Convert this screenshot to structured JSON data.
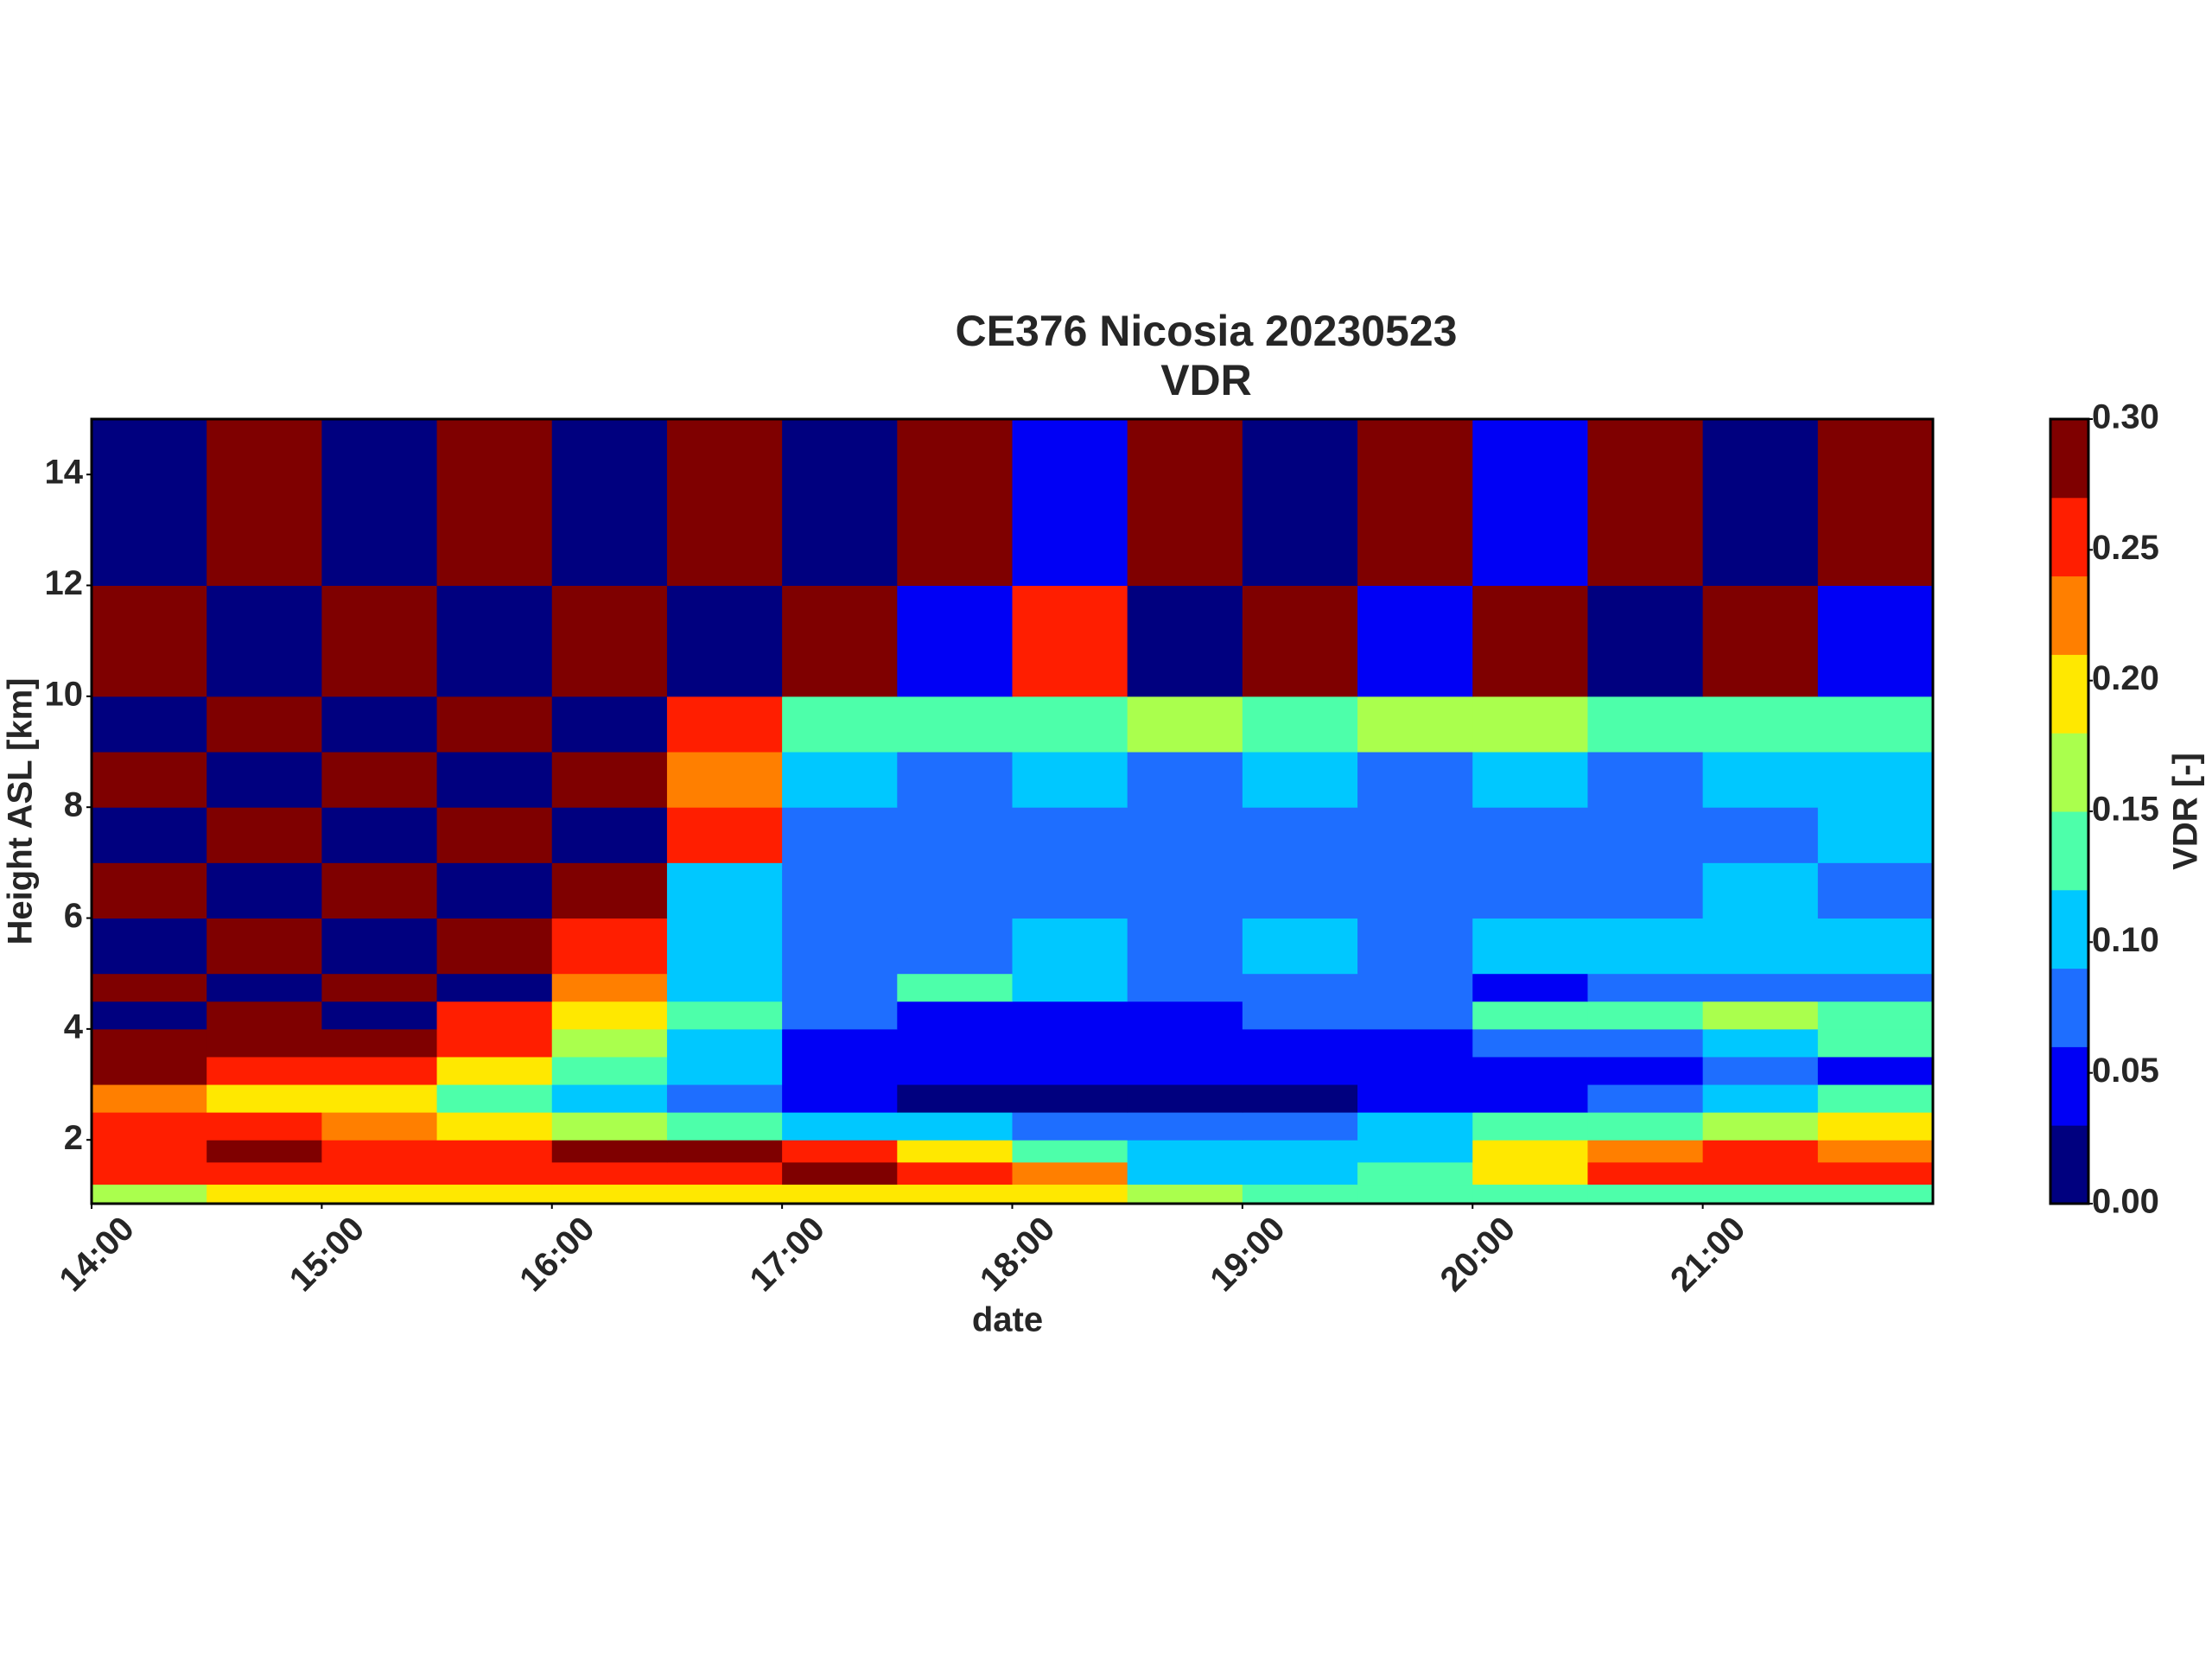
{
  "chart_data": {
    "type": "heatmap",
    "title": "CE376 Nicosia 20230523",
    "subtitle": "VDR",
    "x_label": "date",
    "y_label": "Height ASL [km]",
    "x_edges": [
      14,
      14.5,
      15,
      15.5,
      16,
      16.5,
      17,
      17.5,
      18,
      18.5,
      19,
      19.5,
      20,
      20.5,
      21,
      21.5,
      22
    ],
    "y_edges": [
      0.85,
      1.2,
      1.6,
      2.0,
      2.5,
      3.0,
      3.5,
      4.0,
      4.5,
      5.0,
      6.0,
      7.0,
      8.0,
      9.0,
      10.0,
      12.0,
      15.0
    ],
    "z": [
      [
        0.17,
        0.18,
        0.19,
        0.19,
        0.19,
        0.2,
        0.2,
        0.2,
        0.19,
        0.16,
        0.14,
        0.13,
        0.14,
        0.13,
        0.13,
        0.12
      ],
      [
        0.25,
        0.25,
        0.26,
        0.24,
        0.25,
        0.26,
        0.27,
        0.24,
        0.21,
        0.1,
        0.09,
        0.12,
        0.2,
        0.24,
        0.26,
        0.25
      ],
      [
        0.26,
        0.27,
        0.25,
        0.26,
        0.29,
        0.29,
        0.25,
        0.19,
        0.12,
        0.09,
        0.09,
        0.11,
        0.19,
        0.23,
        0.25,
        0.22
      ],
      [
        0.24,
        0.26,
        0.22,
        0.2,
        0.16,
        0.13,
        0.11,
        0.09,
        0.08,
        0.08,
        0.08,
        0.09,
        0.12,
        0.13,
        0.16,
        0.18
      ],
      [
        0.22,
        0.2,
        0.18,
        0.14,
        0.11,
        0.08,
        0.03,
        0.02,
        0.02,
        0.02,
        0.02,
        0.03,
        0.04,
        0.06,
        0.09,
        0.12
      ],
      [
        0.28,
        0.26,
        0.24,
        0.2,
        0.14,
        0.1,
        0.04,
        0.03,
        0.03,
        0.03,
        0.04,
        0.04,
        0.04,
        0.05,
        0.06,
        0.05
      ],
      [
        0.29,
        0.28,
        0.27,
        0.24,
        0.17,
        0.11,
        0.05,
        0.04,
        0.04,
        0.04,
        0.05,
        0.05,
        0.07,
        0.06,
        0.1,
        0.12
      ],
      [
        0.01,
        0.28,
        0.02,
        0.26,
        0.2,
        0.13,
        0.06,
        0.04,
        0.04,
        0.05,
        0.06,
        0.08,
        0.13,
        0.14,
        0.15,
        0.14
      ],
      [
        0.28,
        0.02,
        0.28,
        0.02,
        0.22,
        0.1,
        0.08,
        0.12,
        0.1,
        0.08,
        0.07,
        0.06,
        0.05,
        0.06,
        0.07,
        0.08
      ],
      [
        0.02,
        0.29,
        0.01,
        0.28,
        0.25,
        0.09,
        0.08,
        0.08,
        0.09,
        0.08,
        0.09,
        0.08,
        0.09,
        0.1,
        0.09,
        0.1
      ],
      [
        0.29,
        0.01,
        0.29,
        0.02,
        0.27,
        0.1,
        0.07,
        0.08,
        0.07,
        0.08,
        0.07,
        0.08,
        0.07,
        0.08,
        0.09,
        0.08
      ],
      [
        0.01,
        0.29,
        0.02,
        0.29,
        0.02,
        0.25,
        0.08,
        0.07,
        0.08,
        0.07,
        0.08,
        0.07,
        0.08,
        0.07,
        0.08,
        0.09
      ],
      [
        0.29,
        0.02,
        0.29,
        0.01,
        0.28,
        0.22,
        0.09,
        0.08,
        0.09,
        0.08,
        0.09,
        0.08,
        0.09,
        0.08,
        0.09,
        0.1
      ],
      [
        0.02,
        0.28,
        0.01,
        0.29,
        0.02,
        0.26,
        0.14,
        0.13,
        0.14,
        0.15,
        0.14,
        0.16,
        0.15,
        0.14,
        0.13,
        0.12
      ],
      [
        0.29,
        0.02,
        0.28,
        0.01,
        0.29,
        0.02,
        0.27,
        0.03,
        0.26,
        0.02,
        0.28,
        0.03,
        0.27,
        0.02,
        0.29,
        0.03
      ],
      [
        0.01,
        0.29,
        0.02,
        0.28,
        0.01,
        0.29,
        0.02,
        0.28,
        0.03,
        0.27,
        0.02,
        0.29,
        0.03,
        0.28,
        0.02,
        0.27
      ]
    ],
    "xlim": [
      14,
      22
    ],
    "xticks": [
      {
        "value": 14,
        "label": "14:00"
      },
      {
        "value": 15,
        "label": "15:00"
      },
      {
        "value": 16,
        "label": "16:00"
      },
      {
        "value": 17,
        "label": "17:00"
      },
      {
        "value": 18,
        "label": "18:00"
      },
      {
        "value": 19,
        "label": "19:00"
      },
      {
        "value": 20,
        "label": "20:00"
      },
      {
        "value": 21,
        "label": "21:00"
      }
    ],
    "ylim": [
      0.85,
      15
    ],
    "yticks": [
      2,
      4,
      6,
      8,
      10,
      12,
      14
    ],
    "colorbar": {
      "label": "VDR [-]",
      "levels": [
        0,
        0.03,
        0.06,
        0.09,
        0.12,
        0.15,
        0.18,
        0.21,
        0.24,
        0.27,
        0.3
      ],
      "colors": [
        "#00007f",
        "#0000f5",
        "#1e6eff",
        "#00c8ff",
        "#4dffaa",
        "#aaff4d",
        "#ffe800",
        "#ff7f00",
        "#ff1e00",
        "#7f0000"
      ],
      "lim": [
        0,
        0.3
      ],
      "ticks": [
        {
          "value": 0,
          "label": "0.00"
        },
        {
          "value": 0.05,
          "label": "0.05"
        },
        {
          "value": 0.1,
          "label": "0.10"
        },
        0.15,
        {
          "value": 0.2,
          "label": "0.20"
        },
        0.25,
        {
          "value": 0.3,
          "label": "0.30"
        }
      ]
    }
  }
}
